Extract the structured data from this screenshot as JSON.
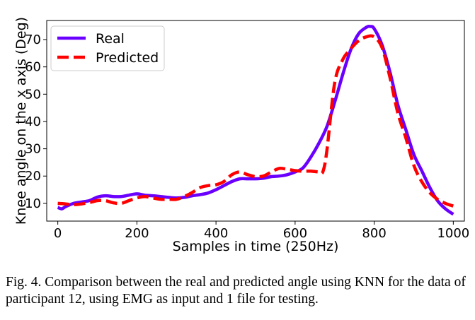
{
  "chart_data": {
    "type": "line",
    "xlabel": "Samples in time (250Hz)",
    "ylabel": "Knee angle on the x axis (Deg)",
    "xlim": [
      -28,
      1028
    ],
    "ylim": [
      3.5,
      77
    ],
    "xticks": [
      0,
      200,
      400,
      600,
      800,
      1000
    ],
    "yticks": [
      10,
      20,
      30,
      40,
      50,
      60,
      70
    ],
    "grid": false,
    "legend_position": "top-left",
    "series": [
      {
        "name": "Real",
        "color": "#6a00ff",
        "style": "solid",
        "x": [
          0,
          10,
          20,
          40,
          60,
          80,
          100,
          120,
          140,
          160,
          180,
          200,
          220,
          240,
          260,
          280,
          300,
          320,
          340,
          360,
          380,
          400,
          420,
          440,
          460,
          480,
          500,
          520,
          540,
          560,
          580,
          600,
          620,
          640,
          660,
          680,
          700,
          720,
          740,
          760,
          780,
          790,
          800,
          820,
          840,
          860,
          880,
          900,
          920,
          940,
          960,
          980,
          1000
        ],
        "y": [
          8.5,
          8.0,
          8.8,
          10.0,
          10.5,
          11.0,
          12.3,
          12.8,
          12.5,
          12.5,
          13.0,
          13.5,
          13.0,
          12.8,
          12.5,
          12.2,
          12.0,
          12.2,
          12.8,
          13.2,
          13.8,
          15.0,
          16.5,
          18.0,
          19.0,
          19.0,
          19.0,
          19.2,
          19.8,
          20.0,
          20.5,
          21.5,
          23.0,
          27.0,
          32.0,
          38.0,
          47.0,
          57.0,
          66.0,
          72.0,
          74.5,
          74.8,
          74.0,
          68.0,
          58.0,
          46.0,
          37.0,
          28.0,
          22.0,
          16.0,
          11.0,
          8.0,
          6.0
        ]
      },
      {
        "name": "Predicted",
        "color": "#ff0000",
        "style": "dashed",
        "x": [
          0,
          20,
          40,
          60,
          80,
          100,
          120,
          140,
          160,
          180,
          200,
          220,
          240,
          260,
          280,
          300,
          320,
          340,
          360,
          380,
          400,
          420,
          440,
          460,
          480,
          500,
          520,
          540,
          560,
          580,
          600,
          620,
          640,
          660,
          670,
          680,
          700,
          720,
          740,
          760,
          780,
          800,
          820,
          840,
          860,
          880,
          900,
          920,
          940,
          960,
          980,
          1000
        ],
        "y": [
          10.0,
          9.8,
          9.5,
          9.8,
          10.3,
          11.0,
          11.0,
          10.2,
          10.0,
          11.0,
          12.0,
          12.5,
          12.0,
          11.5,
          11.5,
          11.5,
          12.5,
          14.0,
          15.8,
          16.5,
          16.8,
          18.0,
          20.5,
          21.5,
          20.5,
          19.8,
          20.0,
          21.5,
          22.8,
          22.5,
          22.0,
          21.8,
          21.8,
          21.5,
          21.5,
          29.0,
          54.0,
          62.5,
          66.5,
          69.5,
          71.0,
          71.0,
          67.0,
          56.0,
          43.0,
          34.0,
          24.0,
          18.0,
          14.0,
          11.5,
          10.0,
          9.0
        ]
      }
    ]
  },
  "caption": "Fig. 4.  Comparison between the real and predicted angle using KNN for the data of participant 12, using EMG as input and 1 file for testing."
}
